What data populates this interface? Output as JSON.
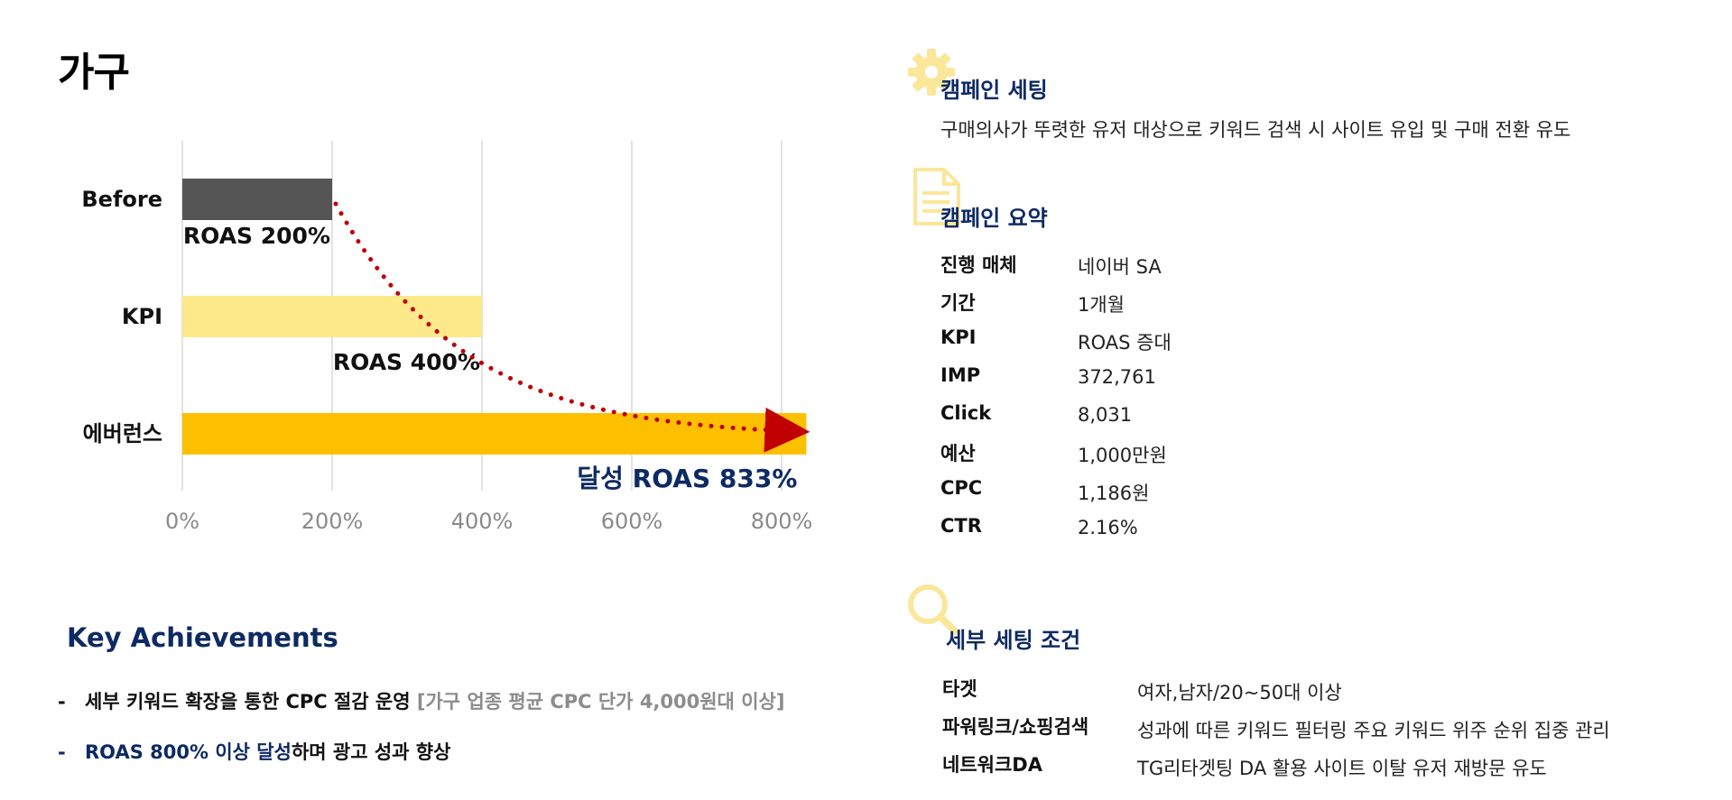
{
  "page_title": "가구",
  "chart_data": {
    "type": "bar",
    "orientation": "horizontal",
    "categories": [
      "Before",
      "KPI",
      "에버런스"
    ],
    "values": [
      200,
      400,
      833
    ],
    "colors": [
      "#555555",
      "#fde98a",
      "#fdc000"
    ],
    "data_labels": [
      "ROAS 200%",
      "ROAS 400%",
      "달성 ROAS 833%"
    ],
    "x_ticks": [
      "0%",
      "200%",
      "400%",
      "600%",
      "800%"
    ],
    "xlim": [
      0,
      800
    ],
    "grid": true,
    "trend_arrow_color": "#c00000"
  },
  "campaign_setting": {
    "title": "캠페인 세팅",
    "icon": "gear-icon",
    "description": "구매의사가 뚜렷한 유저 대상으로 키워드 검색 시 사이트 유입 및 구매 전환 유도"
  },
  "campaign_summary": {
    "title": "캠페인 요약",
    "icon": "document-icon",
    "rows": [
      {
        "key": "진행 매체",
        "value": "네이버 SA"
      },
      {
        "key": "기간",
        "value": "1개월"
      },
      {
        "key": "KPI",
        "value": "ROAS 증대"
      },
      {
        "key": "IMP",
        "value": "372,761"
      },
      {
        "key": "Click",
        "value": "8,031"
      },
      {
        "key": "예산",
        "value": "1,000만원"
      },
      {
        "key": "CPC",
        "value": "1,186원"
      },
      {
        "key": "CTR",
        "value": "2.16%"
      }
    ]
  },
  "detail_setting": {
    "title": "세부 세팅 조건",
    "icon": "magnifier-icon",
    "rows": [
      {
        "key": "타겟",
        "value": "여자,남자/20~50대 이상"
      },
      {
        "key": "파워링크/쇼핑검색",
        "value": "성과에 따른 키워드 필터링 주요 키워드 위주 순위 집중 관리"
      },
      {
        "key": "네트워크DA",
        "value": "TG리타겟팅 DA 활용 사이트 이탈 유저 재방문 유도"
      }
    ]
  },
  "key_achievements": {
    "title": "Key Achievements",
    "items": [
      {
        "dash": "-",
        "strong": "세부 키워드 확장",
        "mid": "을 통한 CPC 절감 운영 ",
        "gray": "[가구 업종 평균 CPC 단가 4,000원대 이상]"
      },
      {
        "dash": "-",
        "navy": "ROAS 800% 이상 달성",
        "rest": "하며 광고 성과 향상"
      }
    ]
  },
  "colors": {
    "navy": "#0d2a63",
    "accent_yellow": "#fdc000",
    "light_yellow": "#fde98a",
    "icon_yellow": "#fbe79a",
    "arrow_red": "#c00000"
  }
}
